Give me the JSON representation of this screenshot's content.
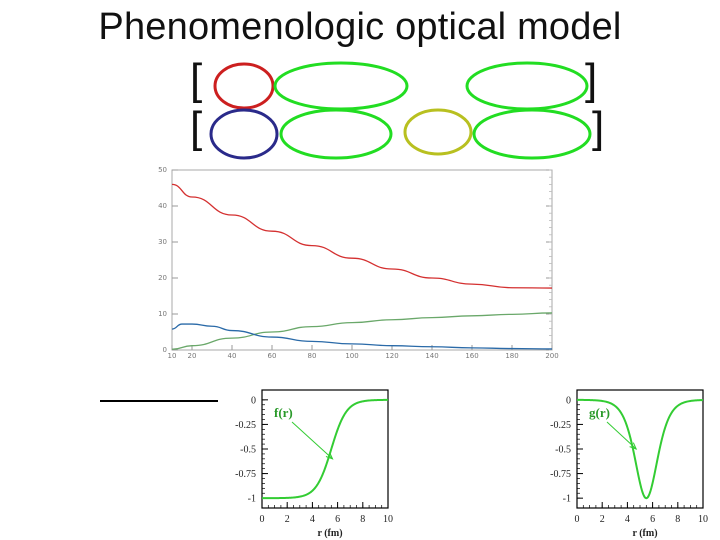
{
  "slide": {
    "title": "Phenomenologic optical model"
  },
  "equation": {
    "line1_open": "[",
    "line1_close": "]",
    "line2_open": "[",
    "line2_close": "]",
    "highlight_colors": [
      "#cc1f1f",
      "#22dd22",
      "#2a2a8a",
      "#b8c020"
    ]
  },
  "chart_data": [
    {
      "type": "line",
      "title": "",
      "xlabel": "",
      "ylabel": "",
      "xlim": [
        10,
        200
      ],
      "ylim": [
        0,
        50
      ],
      "x_ticks": [
        10,
        20,
        40,
        60,
        80,
        100,
        120,
        140,
        160,
        180,
        200
      ],
      "y_ticks": [
        0,
        10,
        20,
        30,
        40,
        50
      ],
      "series": [
        {
          "color": "#d43030",
          "x": [
            10,
            20,
            40,
            60,
            80,
            100,
            120,
            140,
            160,
            180,
            200
          ],
          "y": [
            46,
            42.5,
            37.5,
            33,
            29,
            25.5,
            22.5,
            20,
            18.3,
            17.3,
            17.2
          ]
        },
        {
          "color": "#6aa86a",
          "x": [
            10,
            20,
            40,
            60,
            80,
            100,
            120,
            140,
            160,
            180,
            200
          ],
          "y": [
            0.2,
            1.2,
            3.3,
            5.0,
            6.5,
            7.6,
            8.4,
            9.0,
            9.5,
            9.9,
            10.3
          ]
        },
        {
          "color": "#2a6aa8",
          "x": [
            10,
            15,
            20,
            30,
            40,
            60,
            80,
            100,
            120,
            140,
            160,
            180,
            200
          ],
          "y": [
            5.8,
            7.2,
            7.2,
            6.6,
            5.4,
            3.6,
            2.4,
            1.7,
            1.2,
            0.9,
            0.6,
            0.4,
            0.3
          ]
        }
      ]
    },
    {
      "type": "line",
      "title": "",
      "annotation": "f(r)",
      "xlabel": "r (fm)",
      "ylabel": "",
      "xlim": [
        0,
        10
      ],
      "ylim": [
        -1.1,
        0.1
      ],
      "x_ticks": [
        "0",
        "2",
        "4",
        "6",
        "8",
        "10"
      ],
      "y_ticks": [
        "0",
        "-0.25",
        "-0.5",
        "-0.75",
        "-1"
      ],
      "series": [
        {
          "color": "#33cc33",
          "function": "woods-saxon",
          "radius": 5.5,
          "diffuseness": 0.6
        }
      ]
    },
    {
      "type": "line",
      "title": "",
      "annotation": "g(r)",
      "xlabel": "r (fm)",
      "ylabel": "",
      "xlim": [
        0,
        10
      ],
      "ylim": [
        -1.1,
        0.1
      ],
      "x_ticks": [
        "0",
        "2",
        "4",
        "6",
        "8",
        "10"
      ],
      "y_ticks": [
        "0",
        "-0.25",
        "-0.5",
        "-0.75",
        "-1"
      ],
      "series": [
        {
          "color": "#33cc33",
          "function": "surface-derivative",
          "radius": 5.5,
          "diffuseness": 0.6
        }
      ]
    }
  ]
}
